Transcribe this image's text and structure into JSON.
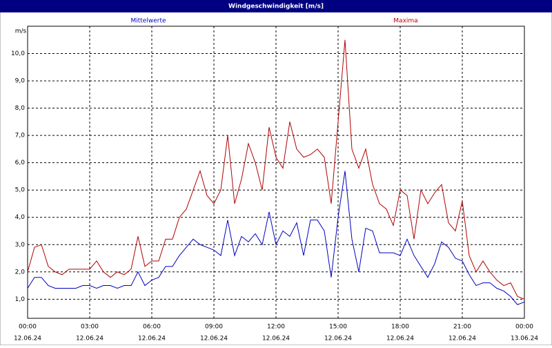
{
  "chart_data": {
    "type": "line",
    "title": "Windgeschwindigkeit [m/s]",
    "y_unit": "m/s",
    "x": [
      0,
      20,
      40,
      60,
      80,
      100,
      120,
      140,
      160,
      180,
      200,
      220,
      240,
      260,
      280,
      300,
      320,
      340,
      360,
      380,
      400,
      420,
      440,
      460,
      480,
      500,
      520,
      540,
      560,
      580,
      600,
      620,
      640,
      660,
      680,
      700,
      720,
      740,
      760,
      780,
      800,
      820,
      840,
      860,
      880,
      900,
      920,
      940,
      960,
      980,
      1000,
      1020,
      1040,
      1060,
      1080,
      1100,
      1120,
      1140,
      1160,
      1180,
      1200,
      1220,
      1240,
      1260,
      1280,
      1300,
      1320,
      1340,
      1360,
      1380,
      1400,
      1420,
      1440
    ],
    "series": [
      {
        "name": "Mittelwerte",
        "color": "#0000c0",
        "values": [
          1.4,
          1.8,
          1.8,
          1.5,
          1.4,
          1.4,
          1.4,
          1.4,
          1.5,
          1.5,
          1.4,
          1.5,
          1.5,
          1.4,
          1.5,
          1.5,
          2.0,
          1.5,
          1.7,
          1.8,
          2.2,
          2.2,
          2.6,
          2.9,
          3.2,
          3.0,
          2.9,
          2.8,
          2.6,
          3.9,
          2.6,
          3.3,
          3.1,
          3.4,
          3.0,
          4.2,
          3.0,
          3.5,
          3.3,
          3.8,
          2.6,
          3.9,
          3.9,
          3.5,
          1.8,
          4.0,
          5.7,
          3.2,
          2.0,
          3.6,
          3.5,
          2.7,
          2.7,
          2.7,
          2.6,
          3.2,
          2.6,
          2.2,
          1.8,
          2.3,
          3.1,
          2.9,
          2.5,
          2.4,
          1.9,
          1.5,
          1.6,
          1.6,
          1.4,
          1.3,
          1.1,
          0.8,
          0.9
        ]
      },
      {
        "name": "Maxima",
        "color": "#b00000",
        "values": [
          2.0,
          2.9,
          3.0,
          2.2,
          2.0,
          1.9,
          2.1,
          2.1,
          2.1,
          2.1,
          2.4,
          2.0,
          1.8,
          2.0,
          1.9,
          2.1,
          3.3,
          2.2,
          2.4,
          2.4,
          3.2,
          3.2,
          4.0,
          4.3,
          5.0,
          5.7,
          4.8,
          4.5,
          5.0,
          7.0,
          4.5,
          5.4,
          6.7,
          6.0,
          5.0,
          7.3,
          6.2,
          5.8,
          7.5,
          6.5,
          6.2,
          6.3,
          6.5,
          6.2,
          4.5,
          7.5,
          10.5,
          6.5,
          5.8,
          6.5,
          5.2,
          4.5,
          4.3,
          3.7,
          5.0,
          4.8,
          3.2,
          5.0,
          4.5,
          4.9,
          5.2,
          3.8,
          3.5,
          4.6,
          2.6,
          2.0,
          2.4,
          2.0,
          1.7,
          1.5,
          1.6,
          1.1,
          1.0
        ]
      }
    ],
    "xlim": [
      0,
      1440
    ],
    "xticks": [
      {
        "value": 0,
        "label": "00:00"
      },
      {
        "value": 180,
        "label": "03:00"
      },
      {
        "value": 360,
        "label": "06:00"
      },
      {
        "value": 540,
        "label": "09:00"
      },
      {
        "value": 720,
        "label": "12:00"
      },
      {
        "value": 900,
        "label": "15:00"
      },
      {
        "value": 1080,
        "label": "18:00"
      },
      {
        "value": 1260,
        "label": "21:00"
      },
      {
        "value": 1440,
        "label": "00:00"
      }
    ],
    "xtick_dates": [
      "12.06.24",
      "12.06.24",
      "12.06.24",
      "12.06.24",
      "12.06.24",
      "12.06.24",
      "12.06.24",
      "12.06.24",
      "13.06.24"
    ],
    "ylim": [
      0.3,
      11.0
    ],
    "yticks": [
      {
        "value": 1,
        "label": "1,0"
      },
      {
        "value": 2,
        "label": "2,0"
      },
      {
        "value": 3,
        "label": "3,0"
      },
      {
        "value": 4,
        "label": "4,0"
      },
      {
        "value": 5,
        "label": "5,0"
      },
      {
        "value": 6,
        "label": "6,0"
      },
      {
        "value": 7,
        "label": "7,0"
      },
      {
        "value": 8,
        "label": "8,0"
      },
      {
        "value": 9,
        "label": "9,0"
      },
      {
        "value": 10,
        "label": "10,0"
      }
    ],
    "grid": true
  }
}
